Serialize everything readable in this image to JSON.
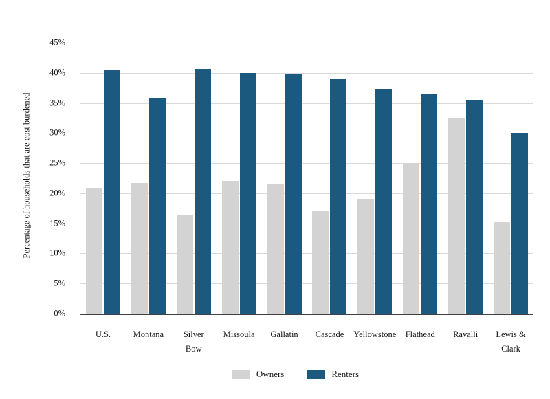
{
  "chart_data": {
    "type": "bar",
    "title": "",
    "xlabel": "",
    "ylabel": "Percentage of households that are cost burdened",
    "ylim": [
      0,
      45
    ],
    "grid": "horizontal",
    "legend_position": "bottom",
    "yticks": [
      {
        "value": 0,
        "label": "0%"
      },
      {
        "value": 5,
        "label": "5%"
      },
      {
        "value": 10,
        "label": "10%"
      },
      {
        "value": 15,
        "label": "15%"
      },
      {
        "value": 20,
        "label": "20%"
      },
      {
        "value": 25,
        "label": "25%"
      },
      {
        "value": 30,
        "label": "30%"
      },
      {
        "value": 35,
        "label": "35%"
      },
      {
        "value": 40,
        "label": "40%"
      },
      {
        "value": 45,
        "label": "45%"
      }
    ],
    "categories": [
      "U.S.",
      "Montana",
      "Silver\nBow",
      "Missoula",
      "Gallatin",
      "Cascade",
      "Yellowstone",
      "Flathead",
      "Ravalli",
      "Lewis &\nClark"
    ],
    "series": [
      {
        "name": "Owners",
        "color": "#d3d3d3",
        "values": [
          20.9,
          21.7,
          16.4,
          22.1,
          21.6,
          17.1,
          19.1,
          25.0,
          32.4,
          15.3
        ]
      },
      {
        "name": "Renters",
        "color": "#1b5a7e",
        "values": [
          40.4,
          35.9,
          40.6,
          40.0,
          39.9,
          39.0,
          37.2,
          36.4,
          35.4,
          30.0
        ]
      }
    ]
  },
  "colors": {
    "gridline": "#d9d9d9",
    "axis": "#404040",
    "text": "#1a1a1a",
    "background": "#ffffff"
  }
}
